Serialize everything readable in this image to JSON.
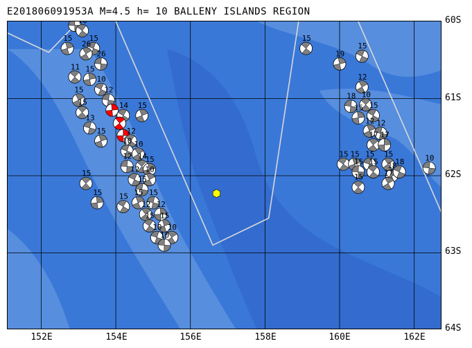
{
  "header": {
    "title": "E201806091953A M=4.5 h= 10 BALLENY ISLANDS REGION"
  },
  "map": {
    "ocean_color": "#3a78d8",
    "deep_ocean_color": "#2e64c8",
    "shallow_color": "#6fa0e4",
    "grid_color": "#000000",
    "plate_boundary_color": "#d8d8d8",
    "epicenter_color": "#ffff00",
    "beachball_dark_color": "#808080",
    "beachball_highlight_color": "#ff0000",
    "lat_labels": [
      "60S",
      "61S",
      "62S",
      "63S",
      "64S"
    ],
    "lon_labels": [
      "152E",
      "154E",
      "156E",
      "158E",
      "160E",
      "162E"
    ],
    "epicenter": {
      "lon": 156.7,
      "lat": -62.23
    },
    "events": [
      {
        "lon": 152.9,
        "lat": -60.05,
        "depth": "15"
      },
      {
        "lon": 153.1,
        "lat": -60.12,
        "depth": "10"
      },
      {
        "lon": 152.7,
        "lat": -60.35,
        "depth": "15"
      },
      {
        "lon": 153.4,
        "lat": -60.35,
        "depth": "15"
      },
      {
        "lon": 153.2,
        "lat": -60.42,
        "depth": "26"
      },
      {
        "lon": 153.6,
        "lat": -60.55,
        "depth": "26"
      },
      {
        "lon": 152.9,
        "lat": -60.72,
        "depth": "11"
      },
      {
        "lon": 153.3,
        "lat": -60.75,
        "depth": "15"
      },
      {
        "lon": 153.6,
        "lat": -60.88,
        "depth": "10"
      },
      {
        "lon": 153.0,
        "lat": -61.02,
        "depth": "15"
      },
      {
        "lon": 153.8,
        "lat": -61.02,
        "depth": "12"
      },
      {
        "lon": 153.1,
        "lat": -61.18,
        "depth": "15"
      },
      {
        "lon": 153.9,
        "lat": -61.15,
        "depth": "",
        "red": true
      },
      {
        "lon": 154.2,
        "lat": -61.22,
        "depth": "14"
      },
      {
        "lon": 154.7,
        "lat": -61.22,
        "depth": "15"
      },
      {
        "lon": 153.3,
        "lat": -61.38,
        "depth": "13"
      },
      {
        "lon": 154.1,
        "lat": -61.32,
        "depth": "",
        "red": true
      },
      {
        "lon": 154.2,
        "lat": -61.48,
        "depth": "",
        "red": true
      },
      {
        "lon": 154.4,
        "lat": -61.55,
        "depth": "12"
      },
      {
        "lon": 153.6,
        "lat": -61.55,
        "depth": "15"
      },
      {
        "lon": 154.3,
        "lat": -61.68,
        "depth": "10"
      },
      {
        "lon": 154.6,
        "lat": -61.72,
        "depth": "10"
      },
      {
        "lon": 154.3,
        "lat": -61.88,
        "depth": "12"
      },
      {
        "lon": 154.7,
        "lat": -61.88,
        "depth": "14"
      },
      {
        "lon": 154.9,
        "lat": -61.92,
        "depth": "15"
      },
      {
        "lon": 154.5,
        "lat": -62.05,
        "depth": "12"
      },
      {
        "lon": 154.9,
        "lat": -62.05,
        "depth": "10"
      },
      {
        "lon": 154.7,
        "lat": -62.18,
        "depth": "15"
      },
      {
        "lon": 153.2,
        "lat": -62.1,
        "depth": "15"
      },
      {
        "lon": 153.5,
        "lat": -62.35,
        "depth": "15"
      },
      {
        "lon": 154.2,
        "lat": -62.4,
        "depth": "15"
      },
      {
        "lon": 154.6,
        "lat": -62.35,
        "depth": "15"
      },
      {
        "lon": 155.0,
        "lat": -62.35,
        "depth": "15"
      },
      {
        "lon": 154.8,
        "lat": -62.5,
        "depth": "12"
      },
      {
        "lon": 155.2,
        "lat": -62.5,
        "depth": "12"
      },
      {
        "lon": 154.9,
        "lat": -62.65,
        "depth": "15"
      },
      {
        "lon": 155.3,
        "lat": -62.65,
        "depth": "15"
      },
      {
        "lon": 155.1,
        "lat": -62.8,
        "depth": "10"
      },
      {
        "lon": 155.5,
        "lat": -62.8,
        "depth": "10"
      },
      {
        "lon": 155.3,
        "lat": -62.9,
        "depth": "10"
      },
      {
        "lon": 159.1,
        "lat": -60.35,
        "depth": "15"
      },
      {
        "lon": 160.0,
        "lat": -60.55,
        "depth": "19"
      },
      {
        "lon": 160.6,
        "lat": -60.45,
        "depth": "15"
      },
      {
        "lon": 160.6,
        "lat": -60.85,
        "depth": "12"
      },
      {
        "lon": 160.3,
        "lat": -61.1,
        "depth": "18"
      },
      {
        "lon": 160.7,
        "lat": -61.08,
        "depth": "10"
      },
      {
        "lon": 160.5,
        "lat": -61.25,
        "depth": "15"
      },
      {
        "lon": 160.9,
        "lat": -61.22,
        "depth": "15"
      },
      {
        "lon": 160.8,
        "lat": -61.42,
        "depth": "12"
      },
      {
        "lon": 161.1,
        "lat": -61.45,
        "depth": "12"
      },
      {
        "lon": 160.9,
        "lat": -61.6,
        "depth": "17"
      },
      {
        "lon": 161.2,
        "lat": -61.6,
        "depth": "17"
      },
      {
        "lon": 160.1,
        "lat": -61.85,
        "depth": "15"
      },
      {
        "lon": 160.4,
        "lat": -61.85,
        "depth": "15"
      },
      {
        "lon": 160.8,
        "lat": -61.85,
        "depth": "15"
      },
      {
        "lon": 161.3,
        "lat": -61.85,
        "depth": "15"
      },
      {
        "lon": 160.5,
        "lat": -61.95,
        "depth": "15"
      },
      {
        "lon": 160.9,
        "lat": -61.95,
        "depth": "15"
      },
      {
        "lon": 161.4,
        "lat": -62.0,
        "depth": "18"
      },
      {
        "lon": 161.6,
        "lat": -61.95,
        "depth": "18"
      },
      {
        "lon": 161.3,
        "lat": -62.1,
        "depth": "17"
      },
      {
        "lon": 162.4,
        "lat": -61.9,
        "depth": "10"
      },
      {
        "lon": 160.5,
        "lat": -62.15,
        "depth": "15"
      }
    ]
  }
}
